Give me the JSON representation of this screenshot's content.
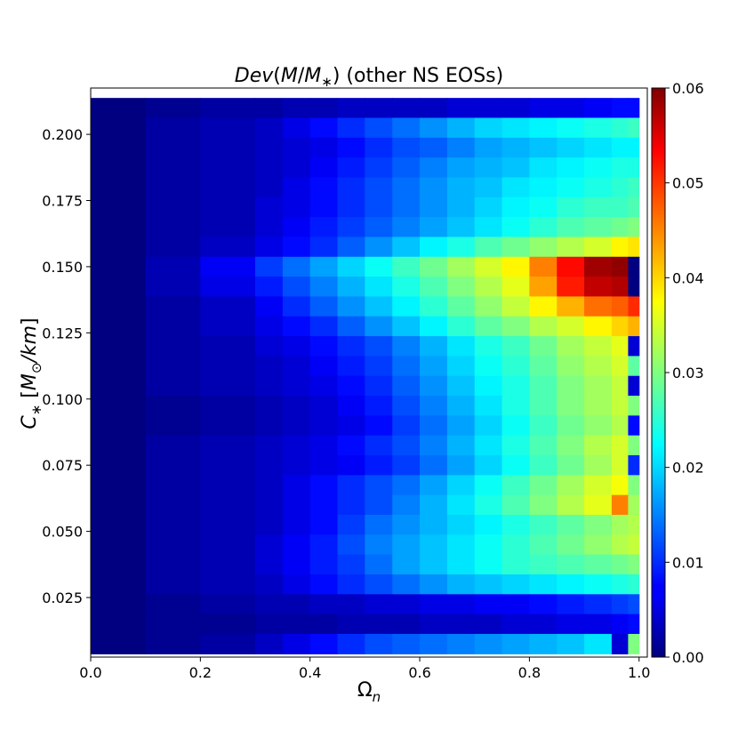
{
  "chart_data": {
    "type": "heatmap",
    "title": "Dev(M/M∗) (other NS EOSs)",
    "title_parts": {
      "func": "Dev",
      "open": "(",
      "num": "M",
      "slash": "/",
      "den": "M",
      "sub": "∗",
      "close": ")",
      "rest": " (other NS EOSs)"
    },
    "xlabel": "Ωn",
    "xlabel_parts": {
      "main": "Ω",
      "sub": "n"
    },
    "ylabel": "C∗ [M⊙/km]",
    "ylabel_parts": {
      "c": "C",
      "sub": "∗",
      "bracket_open": " [",
      "m": "M",
      "msub": "⊙",
      "unit": "/km",
      "bracket_close": "]"
    },
    "colormap": "jet",
    "xlim": [
      0.0,
      1.015
    ],
    "ylim": [
      0.0025,
      0.2175
    ],
    "color_range": [
      0.0,
      0.06
    ],
    "x_ticks": [
      0.0,
      0.2,
      0.4,
      0.6,
      0.8,
      1.0
    ],
    "x_tick_labels": [
      "0.0",
      "0.2",
      "0.4",
      "0.6",
      "0.8",
      "1.0"
    ],
    "y_ticks": [
      0.025,
      0.05,
      0.075,
      0.1,
      0.125,
      0.15,
      0.175,
      0.2
    ],
    "y_tick_labels": [
      "0.025",
      "0.050",
      "0.075",
      "0.100",
      "0.125",
      "0.150",
      "0.175",
      "0.200"
    ],
    "colorbar_ticks": [
      0.0,
      0.01,
      0.02,
      0.03,
      0.04,
      0.05,
      0.06
    ],
    "colorbar_tick_labels": [
      "0.00",
      "0.01",
      "0.02",
      "0.03",
      "0.04",
      "0.05",
      "0.06"
    ],
    "x_bins": [
      0.1,
      0.2,
      0.3,
      0.35,
      0.4,
      0.45,
      0.5,
      0.55,
      0.6,
      0.65,
      0.7,
      0.75,
      0.8,
      0.85,
      0.9,
      0.95,
      0.98,
      1.0
    ],
    "y_bins": [
      0.21,
      0.2025,
      0.195,
      0.1875,
      0.18,
      0.1725,
      0.165,
      0.1575,
      0.15,
      0.1425,
      0.135,
      0.1275,
      0.12,
      0.1125,
      0.105,
      0.0975,
      0.09,
      0.0825,
      0.075,
      0.0675,
      0.06,
      0.0525,
      0.045,
      0.0375,
      0.03,
      0.0225,
      0.015,
      0.0075
    ],
    "values": [
      [
        0.0,
        0.001,
        0.002,
        0.002,
        0.003,
        0.003,
        0.004,
        0.004,
        0.004,
        0.004,
        0.005,
        0.005,
        0.005,
        0.006,
        0.006,
        0.007,
        0.008,
        0.008
      ],
      [
        0.0,
        0.002,
        0.003,
        0.004,
        0.006,
        0.008,
        0.01,
        0.012,
        0.014,
        0.016,
        0.018,
        0.02,
        0.021,
        0.022,
        0.023,
        0.024,
        0.025,
        0.026
      ],
      [
        0.0,
        0.002,
        0.003,
        0.004,
        0.005,
        0.006,
        0.008,
        0.01,
        0.012,
        0.013,
        0.015,
        0.017,
        0.018,
        0.019,
        0.02,
        0.021,
        0.022,
        0.022
      ],
      [
        0.0,
        0.002,
        0.003,
        0.004,
        0.005,
        0.007,
        0.009,
        0.011,
        0.013,
        0.015,
        0.017,
        0.018,
        0.019,
        0.021,
        0.022,
        0.023,
        0.024,
        0.024
      ],
      [
        0.0,
        0.002,
        0.003,
        0.004,
        0.006,
        0.008,
        0.01,
        0.012,
        0.014,
        0.016,
        0.018,
        0.019,
        0.021,
        0.022,
        0.023,
        0.024,
        0.025,
        0.026
      ],
      [
        0.0,
        0.002,
        0.003,
        0.005,
        0.006,
        0.008,
        0.01,
        0.012,
        0.014,
        0.016,
        0.018,
        0.02,
        0.022,
        0.023,
        0.025,
        0.026,
        0.026,
        0.027
      ],
      [
        0.0,
        0.002,
        0.003,
        0.005,
        0.007,
        0.009,
        0.011,
        0.013,
        0.015,
        0.017,
        0.019,
        0.021,
        0.023,
        0.025,
        0.027,
        0.028,
        0.029,
        0.03
      ],
      [
        0.0,
        0.002,
        0.004,
        0.006,
        0.008,
        0.01,
        0.013,
        0.016,
        0.019,
        0.022,
        0.024,
        0.027,
        0.029,
        0.031,
        0.033,
        0.035,
        0.038,
        0.039
      ],
      [
        0.0,
        0.003,
        0.007,
        0.011,
        0.014,
        0.017,
        0.02,
        0.023,
        0.026,
        0.029,
        0.032,
        0.035,
        0.038,
        0.045,
        0.052,
        0.058,
        0.059,
        0.0
      ],
      [
        0.0,
        0.003,
        0.006,
        0.009,
        0.012,
        0.015,
        0.018,
        0.021,
        0.024,
        0.027,
        0.03,
        0.033,
        0.036,
        0.043,
        0.051,
        0.056,
        0.057,
        0.0
      ],
      [
        0.0,
        0.002,
        0.004,
        0.007,
        0.01,
        0.013,
        0.016,
        0.019,
        0.022,
        0.025,
        0.028,
        0.031,
        0.034,
        0.038,
        0.042,
        0.046,
        0.047,
        0.05
      ],
      [
        0.0,
        0.002,
        0.004,
        0.006,
        0.008,
        0.01,
        0.013,
        0.016,
        0.019,
        0.022,
        0.025,
        0.028,
        0.03,
        0.033,
        0.035,
        0.038,
        0.04,
        0.042
      ],
      [
        0.0,
        0.002,
        0.003,
        0.005,
        0.006,
        0.008,
        0.01,
        0.012,
        0.015,
        0.018,
        0.021,
        0.024,
        0.026,
        0.029,
        0.032,
        0.034,
        0.036,
        0.005
      ],
      [
        0.0,
        0.002,
        0.003,
        0.004,
        0.005,
        0.007,
        0.009,
        0.011,
        0.014,
        0.017,
        0.02,
        0.023,
        0.025,
        0.028,
        0.031,
        0.033,
        0.035,
        0.028
      ],
      [
        0.0,
        0.002,
        0.003,
        0.004,
        0.005,
        0.006,
        0.008,
        0.01,
        0.013,
        0.016,
        0.019,
        0.022,
        0.024,
        0.027,
        0.03,
        0.032,
        0.034,
        0.005
      ],
      [
        0.0,
        0.001,
        0.002,
        0.003,
        0.004,
        0.005,
        0.007,
        0.009,
        0.012,
        0.015,
        0.018,
        0.021,
        0.024,
        0.027,
        0.03,
        0.032,
        0.034,
        0.03
      ],
      [
        0.0,
        0.001,
        0.002,
        0.003,
        0.004,
        0.005,
        0.006,
        0.008,
        0.011,
        0.014,
        0.017,
        0.02,
        0.023,
        0.026,
        0.029,
        0.031,
        0.033,
        0.008
      ],
      [
        0.0,
        0.002,
        0.003,
        0.004,
        0.005,
        0.006,
        0.008,
        0.01,
        0.012,
        0.015,
        0.018,
        0.021,
        0.024,
        0.027,
        0.03,
        0.033,
        0.035,
        0.03
      ],
      [
        0.0,
        0.002,
        0.003,
        0.004,
        0.005,
        0.006,
        0.007,
        0.009,
        0.011,
        0.014,
        0.017,
        0.02,
        0.023,
        0.026,
        0.029,
        0.032,
        0.035,
        0.01
      ],
      [
        0.0,
        0.002,
        0.003,
        0.004,
        0.006,
        0.008,
        0.01,
        0.012,
        0.014,
        0.017,
        0.02,
        0.023,
        0.026,
        0.029,
        0.032,
        0.035,
        0.037,
        0.03
      ],
      [
        0.0,
        0.002,
        0.003,
        0.004,
        0.006,
        0.008,
        0.01,
        0.012,
        0.015,
        0.018,
        0.021,
        0.024,
        0.027,
        0.03,
        0.033,
        0.036,
        0.045,
        0.032
      ],
      [
        0.0,
        0.002,
        0.003,
        0.004,
        0.006,
        0.008,
        0.011,
        0.014,
        0.016,
        0.018,
        0.02,
        0.022,
        0.024,
        0.026,
        0.028,
        0.03,
        0.032,
        0.033
      ],
      [
        0.0,
        0.002,
        0.003,
        0.005,
        0.007,
        0.009,
        0.012,
        0.015,
        0.017,
        0.019,
        0.021,
        0.023,
        0.025,
        0.027,
        0.029,
        0.031,
        0.033,
        0.034
      ],
      [
        0.0,
        0.002,
        0.003,
        0.005,
        0.007,
        0.009,
        0.011,
        0.014,
        0.017,
        0.019,
        0.021,
        0.023,
        0.025,
        0.026,
        0.027,
        0.028,
        0.029,
        0.03
      ],
      [
        0.0,
        0.002,
        0.003,
        0.004,
        0.006,
        0.008,
        0.01,
        0.012,
        0.014,
        0.016,
        0.018,
        0.019,
        0.02,
        0.021,
        0.022,
        0.023,
        0.024,
        0.025
      ],
      [
        0.0,
        0.001,
        0.002,
        0.003,
        0.003,
        0.004,
        0.004,
        0.005,
        0.005,
        0.006,
        0.006,
        0.007,
        0.007,
        0.008,
        0.009,
        0.01,
        0.011,
        0.012
      ],
      [
        0.0,
        0.001,
        0.001,
        0.002,
        0.002,
        0.002,
        0.003,
        0.003,
        0.003,
        0.004,
        0.004,
        0.004,
        0.005,
        0.005,
        0.006,
        0.006,
        0.007,
        0.008
      ],
      [
        0.0,
        0.001,
        0.002,
        0.004,
        0.006,
        0.008,
        0.01,
        0.012,
        0.013,
        0.014,
        0.015,
        0.016,
        0.017,
        0.018,
        0.019,
        0.021,
        0.005,
        0.03
      ]
    ]
  }
}
